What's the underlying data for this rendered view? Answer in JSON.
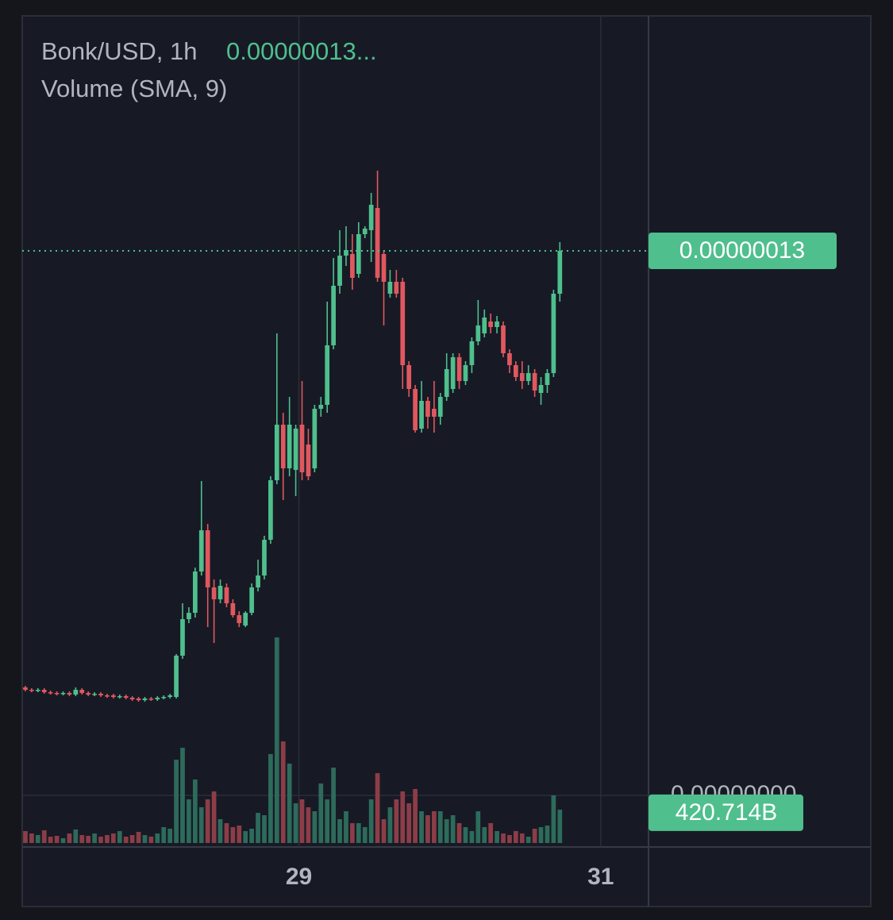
{
  "chart_data": {
    "type": "candlestick",
    "title": "Bonk/USD, 1h",
    "last_price_text": "0.00000013...",
    "up_color": "#4fbf8d",
    "down_color": "#e0585f",
    "volume_up_color": "#2d6b5b",
    "volume_down_color": "#8c3d47",
    "xlim": [
      -0.5,
      99.1
    ],
    "xticks": [
      {
        "value": 43.5,
        "label": "29"
      },
      {
        "value": 91.5,
        "label": "31"
      }
    ],
    "grid": true,
    "ylim": [
      5.5e-08,
      1.6e-07
    ],
    "open": [
      7.5e-08,
      7.47e-08,
      7.46e-08,
      7.47e-08,
      7.44e-08,
      7.43e-08,
      7.42e-08,
      7.43e-08,
      7.41e-08,
      7.47e-08,
      7.43e-08,
      7.41e-08,
      7.42e-08,
      7.4e-08,
      7.4e-08,
      7.38e-08,
      7.39e-08,
      7.37e-08,
      7.36e-08,
      7.34e-08,
      7.36e-08,
      7.35e-08,
      7.37e-08,
      7.38e-08,
      7.38e-08,
      7.9e-08,
      8.36e-08,
      8.44e-08,
      8.96e-08,
      9.48e-08,
      8.76e-08,
      8.61e-08,
      8.76e-08,
      8.56e-08,
      8.41e-08,
      8.28e-08,
      8.44e-08,
      8.76e-08,
      8.91e-08,
      9.36e-08,
      1.011e-07,
      1.081e-07,
      1.026e-07,
      1.024e-07,
      1.081e-07,
      1.056e-07,
      1.026e-07,
      1.101e-07,
      1.106e-07,
      1.181e-07,
      1.256e-07,
      1.294e-07,
      1.296e-07,
      1.271e-07,
      1.321e-07,
      1.326e-07,
      1.354e-07,
      1.296e-07,
      1.246e-07,
      1.261e-07,
      1.261e-07,
      1.156e-07,
      1.126e-07,
      1.076e-07,
      1.111e-07,
      1.101e-07,
      1.091e-07,
      1.116e-07,
      1.126e-07,
      1.166e-07,
      1.136e-07,
      1.156e-07,
      1.186e-07,
      1.196e-07,
      1.211e-07,
      1.204e-07,
      1.206e-07,
      1.171e-07,
      1.156e-07,
      1.146e-07,
      1.136e-07,
      1.146e-07,
      1.121e-07,
      1.131e-07,
      1.146e-07,
      1.246e-07
    ],
    "high": [
      7.52e-08,
      7.49e-08,
      7.49e-08,
      7.49e-08,
      7.46e-08,
      7.45e-08,
      7.45e-08,
      7.45e-08,
      7.5e-08,
      7.49e-08,
      7.45e-08,
      7.44e-08,
      7.44e-08,
      7.42e-08,
      7.42e-08,
      7.41e-08,
      7.41e-08,
      7.39e-08,
      7.38e-08,
      7.38e-08,
      7.38e-08,
      7.39e-08,
      7.4e-08,
      7.42e-08,
      7.92e-08,
      8.56e-08,
      8.51e-08,
      9.01e-08,
      1.01e-07,
      9.56e-08,
      8.86e-08,
      8.86e-08,
      8.81e-08,
      8.61e-08,
      8.46e-08,
      8.46e-08,
      8.81e-08,
      9.11e-08,
      9.41e-08,
      1.016e-07,
      1.196e-07,
      1.096e-07,
      1.116e-07,
      1.081e-07,
      1.136e-07,
      1.076e-07,
      1.106e-07,
      1.116e-07,
      1.236e-07,
      1.291e-07,
      1.326e-07,
      1.331e-07,
      1.321e-07,
      1.336e-07,
      1.331e-07,
      1.373e-07,
      1.401e-07,
      1.301e-07,
      1.276e-07,
      1.276e-07,
      1.266e-07,
      1.161e-07,
      1.131e-07,
      1.136e-07,
      1.116e-07,
      1.136e-07,
      1.121e-07,
      1.171e-07,
      1.171e-07,
      1.171e-07,
      1.161e-07,
      1.191e-07,
      1.238e-07,
      1.226e-07,
      1.221e-07,
      1.218e-07,
      1.211e-07,
      1.176e-07,
      1.161e-07,
      1.161e-07,
      1.156e-07,
      1.151e-07,
      1.141e-07,
      1.151e-07,
      1.251e-07,
      1.311e-07
    ],
    "low": [
      7.45e-08,
      7.44e-08,
      7.44e-08,
      7.42e-08,
      7.41e-08,
      7.4e-08,
      7.4e-08,
      7.39e-08,
      7.39e-08,
      7.41e-08,
      7.39e-08,
      7.39e-08,
      7.38e-08,
      7.37e-08,
      7.36e-08,
      7.36e-08,
      7.35e-08,
      7.33e-08,
      7.32e-08,
      7.32e-08,
      7.33e-08,
      7.33e-08,
      7.35e-08,
      7.36e-08,
      7.36e-08,
      7.86e-08,
      8.31e-08,
      8.38e-08,
      8.91e-08,
      8.26e-08,
      8.06e-08,
      8.56e-08,
      8.51e-08,
      8.38e-08,
      8.26e-08,
      8.26e-08,
      8.41e-08,
      8.71e-08,
      8.86e-08,
      9.31e-08,
      1.006e-07,
      9.86e-08,
      1.016e-07,
      9.91e-08,
      1.011e-07,
      1.011e-07,
      1.021e-07,
      1.091e-07,
      1.096e-07,
      1.176e-07,
      1.246e-07,
      1.281e-07,
      1.251e-07,
      1.266e-07,
      1.316e-07,
      1.286e-07,
      1.261e-07,
      1.206e-07,
      1.241e-07,
      1.241e-07,
      1.126e-07,
      1.116e-07,
      1.071e-07,
      1.071e-07,
      1.076e-07,
      1.071e-07,
      1.081e-07,
      1.111e-07,
      1.121e-07,
      1.126e-07,
      1.131e-07,
      1.146e-07,
      1.181e-07,
      1.191e-07,
      1.196e-07,
      1.196e-07,
      1.166e-07,
      1.146e-07,
      1.136e-07,
      1.126e-07,
      1.131e-07,
      1.116e-07,
      1.106e-07,
      1.121e-07,
      1.141e-07,
      1.236e-07
    ],
    "close": [
      7.47e-08,
      7.46e-08,
      7.47e-08,
      7.44e-08,
      7.43e-08,
      7.42e-08,
      7.43e-08,
      7.41e-08,
      7.47e-08,
      7.43e-08,
      7.41e-08,
      7.42e-08,
      7.4e-08,
      7.39e-08,
      7.38e-08,
      7.39e-08,
      7.37e-08,
      7.35e-08,
      7.34e-08,
      7.36e-08,
      7.35e-08,
      7.37e-08,
      7.38e-08,
      7.4e-08,
      7.9e-08,
      8.36e-08,
      8.44e-08,
      8.96e-08,
      9.48e-08,
      8.76e-08,
      8.61e-08,
      8.78e-08,
      8.56e-08,
      8.41e-08,
      8.31e-08,
      8.44e-08,
      8.76e-08,
      8.91e-08,
      9.36e-08,
      1.011e-07,
      1.081e-07,
      1.026e-07,
      1.081e-07,
      1.076e-07,
      1.021e-07,
      1.016e-07,
      1.101e-07,
      1.106e-07,
      1.181e-07,
      1.256e-07,
      1.294e-07,
      1.301e-07,
      1.266e-07,
      1.321e-07,
      1.328e-07,
      1.358e-07,
      1.266e-07,
      1.261e-07,
      1.261e-07,
      1.246e-07,
      1.156e-07,
      1.126e-07,
      1.074e-07,
      1.111e-07,
      1.091e-07,
      1.091e-07,
      1.116e-07,
      1.151e-07,
      1.166e-07,
      1.136e-07,
      1.156e-07,
      1.186e-07,
      1.206e-07,
      1.216e-07,
      1.204e-07,
      1.211e-07,
      1.171e-07,
      1.156e-07,
      1.141e-07,
      1.136e-07,
      1.146e-07,
      1.124e-07,
      1.131e-07,
      1.146e-07,
      1.246e-07,
      1.3e-07
    ],
    "close_labels": [
      null,
      null,
      null,
      null,
      null,
      null,
      null,
      null,
      null,
      null,
      null,
      null,
      null,
      null,
      null,
      null,
      null,
      null,
      null,
      null,
      null,
      null,
      null,
      null,
      null,
      null,
      null,
      null,
      null,
      null,
      null,
      null,
      null,
      null,
      null,
      null,
      null,
      null,
      null,
      null,
      null,
      null,
      null,
      null,
      null,
      null,
      null,
      null,
      null,
      null,
      null,
      null,
      null,
      null,
      null,
      null,
      null,
      null,
      null,
      null,
      null,
      null,
      null,
      null,
      null,
      null,
      null,
      null,
      null,
      null,
      null,
      null,
      null,
      null,
      null,
      null,
      null,
      null,
      null,
      null,
      null,
      null,
      null,
      null,
      null,
      "0.00000013"
    ],
    "volume": {
      "name": "Volume (SMA, 9)",
      "ylim": [
        0,
        3000000000000.0
      ],
      "axis_text": "0.00000000",
      "values": [
        150000000000.0,
        120000000000.0,
        100000000000.0,
        160000000000.0,
        80000000000.0,
        90000000000.0,
        60000000000.0,
        120000000000.0,
        170000000000.0,
        100000000000.0,
        90000000000.0,
        120000000000.0,
        80000000000.0,
        100000000000.0,
        120000000000.0,
        150000000000.0,
        80000000000.0,
        100000000000.0,
        140000000000.0,
        100000000000.0,
        80000000000.0,
        120000000000.0,
        200000000000.0,
        180000000000.0,
        1050000000000.0,
        1200000000000.0,
        550000000000.0,
        800000000000.0,
        450000000000.0,
        550000000000.0,
        650000000000.0,
        300000000000.0,
        250000000000.0,
        200000000000.0,
        220000000000.0,
        150000000000.0,
        180000000000.0,
        380000000000.0,
        350000000000.0,
        1120000000000.0,
        2590000000000.0,
        1280000000000.0,
        1000000000000.0,
        500000000000.0,
        550000000000.0,
        450000000000.0,
        400000000000.0,
        750000000000.0,
        550000000000.0,
        950000000000.0,
        300000000000.0,
        400000000000.0,
        250000000000.0,
        250000000000.0,
        200000000000.0,
        550000000000.0,
        880000000000.0,
        300000000000.0,
        450000000000.0,
        550000000000.0,
        650000000000.0,
        500000000000.0,
        680000000000.0,
        400000000000.0,
        350000000000.0,
        400000000000.0,
        400000000000.0,
        300000000000.0,
        350000000000.0,
        250000000000.0,
        200000000000.0,
        150000000000.0,
        400000000000.0,
        200000000000.0,
        250000000000.0,
        150000000000.0,
        120000000000.0,
        100000000000.0,
        150000000000.0,
        120000000000.0,
        80000000000.0,
        180000000000.0,
        200000000000.0,
        220000000000.0,
        600000000000.0,
        420714000000.0
      ],
      "value_labels": [
        null,
        null,
        null,
        null,
        null,
        null,
        null,
        null,
        null,
        null,
        null,
        null,
        null,
        null,
        null,
        null,
        null,
        null,
        null,
        null,
        null,
        null,
        null,
        null,
        null,
        null,
        null,
        null,
        null,
        null,
        null,
        null,
        null,
        null,
        null,
        null,
        null,
        null,
        null,
        null,
        null,
        null,
        null,
        null,
        null,
        null,
        null,
        null,
        null,
        null,
        null,
        null,
        null,
        null,
        null,
        null,
        null,
        null,
        null,
        null,
        null,
        null,
        null,
        null,
        null,
        null,
        null,
        null,
        null,
        null,
        null,
        null,
        null,
        null,
        null,
        null,
        null,
        null,
        null,
        null,
        null,
        null,
        null,
        null,
        null,
        "420.714B"
      ]
    }
  }
}
